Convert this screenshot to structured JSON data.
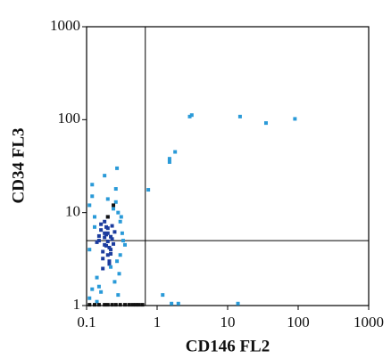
{
  "chart_data": {
    "type": "scatter",
    "x_label": "CD146 FL2",
    "y_label": "CD34 FL3",
    "xscale": "log",
    "yscale": "log",
    "xlim": [
      0.1,
      1000
    ],
    "ylim": [
      1,
      1000
    ],
    "xticks": [
      0.1,
      1,
      10,
      100,
      1000
    ],
    "yticks": [
      1,
      10,
      100,
      1000
    ],
    "gates": {
      "x": 0.68,
      "y": 5
    },
    "series": [
      {
        "color": "#1c3c9e",
        "x": [
          0.15,
          0.18,
          0.2,
          0.22,
          0.17,
          0.19,
          0.21,
          0.16,
          0.23,
          0.2,
          0.18,
          0.14,
          0.25,
          0.22,
          0.19,
          0.17,
          0.2,
          0.24,
          0.21,
          0.18,
          0.16,
          0.2,
          0.22,
          0.19,
          0.23,
          0.15,
          0.21,
          0.18,
          0.2,
          0.17
        ],
        "y": [
          5,
          4.5,
          6,
          5.5,
          3.8,
          7,
          4.2,
          6.5,
          5.2,
          3.5,
          8,
          4.8,
          6.2,
          4,
          5.8,
          3.2,
          9,
          4.6,
          2.8,
          5.4,
          7.5,
          6.8,
          3.6,
          4.4,
          7.2,
          5.6,
          3,
          6,
          4.9,
          2.5
        ]
      },
      {
        "color": "#2a9ad8",
        "x": [
          0.11,
          0.13,
          0.12,
          0.28,
          0.3,
          0.26,
          0.14,
          0.32,
          0.12,
          0.27,
          0.25,
          0.11,
          0.29,
          0.16,
          0.33,
          0.13,
          0.24,
          0.28,
          0.12,
          0.3,
          0.15,
          0.22,
          0.26,
          0.11,
          0.35,
          0.31,
          0.14,
          0.2,
          0.18,
          0.27,
          0.75,
          1.5,
          1.5,
          1.8,
          2.9,
          3.1,
          15,
          35,
          90,
          1.2,
          1.6,
          2,
          14
        ],
        "y": [
          12,
          9,
          15,
          10,
          8,
          13,
          2,
          6,
          1.5,
          3,
          1.8,
          4,
          2.2,
          1.4,
          5,
          7,
          11,
          1.3,
          20,
          3.5,
          1.6,
          2.6,
          18,
          1.2,
          4.5,
          9,
          1.1,
          14,
          25,
          30,
          17.6,
          35,
          38,
          45,
          108,
          112,
          108,
          92,
          102,
          1.3,
          1.05,
          1.05,
          1.05
        ]
      },
      {
        "color": "#111111",
        "x": [
          0.11,
          0.13,
          0.15,
          0.18,
          0.2,
          0.23,
          0.26,
          0.3,
          0.35,
          0.4,
          0.45,
          0.5,
          0.55,
          0.62,
          0.2,
          0.24
        ],
        "y": [
          1.02,
          1.02,
          1.02,
          1.02,
          1.02,
          1.02,
          1.02,
          1.02,
          1.02,
          1.02,
          1.02,
          1.02,
          1.02,
          1.02,
          9,
          12
        ]
      }
    ]
  }
}
